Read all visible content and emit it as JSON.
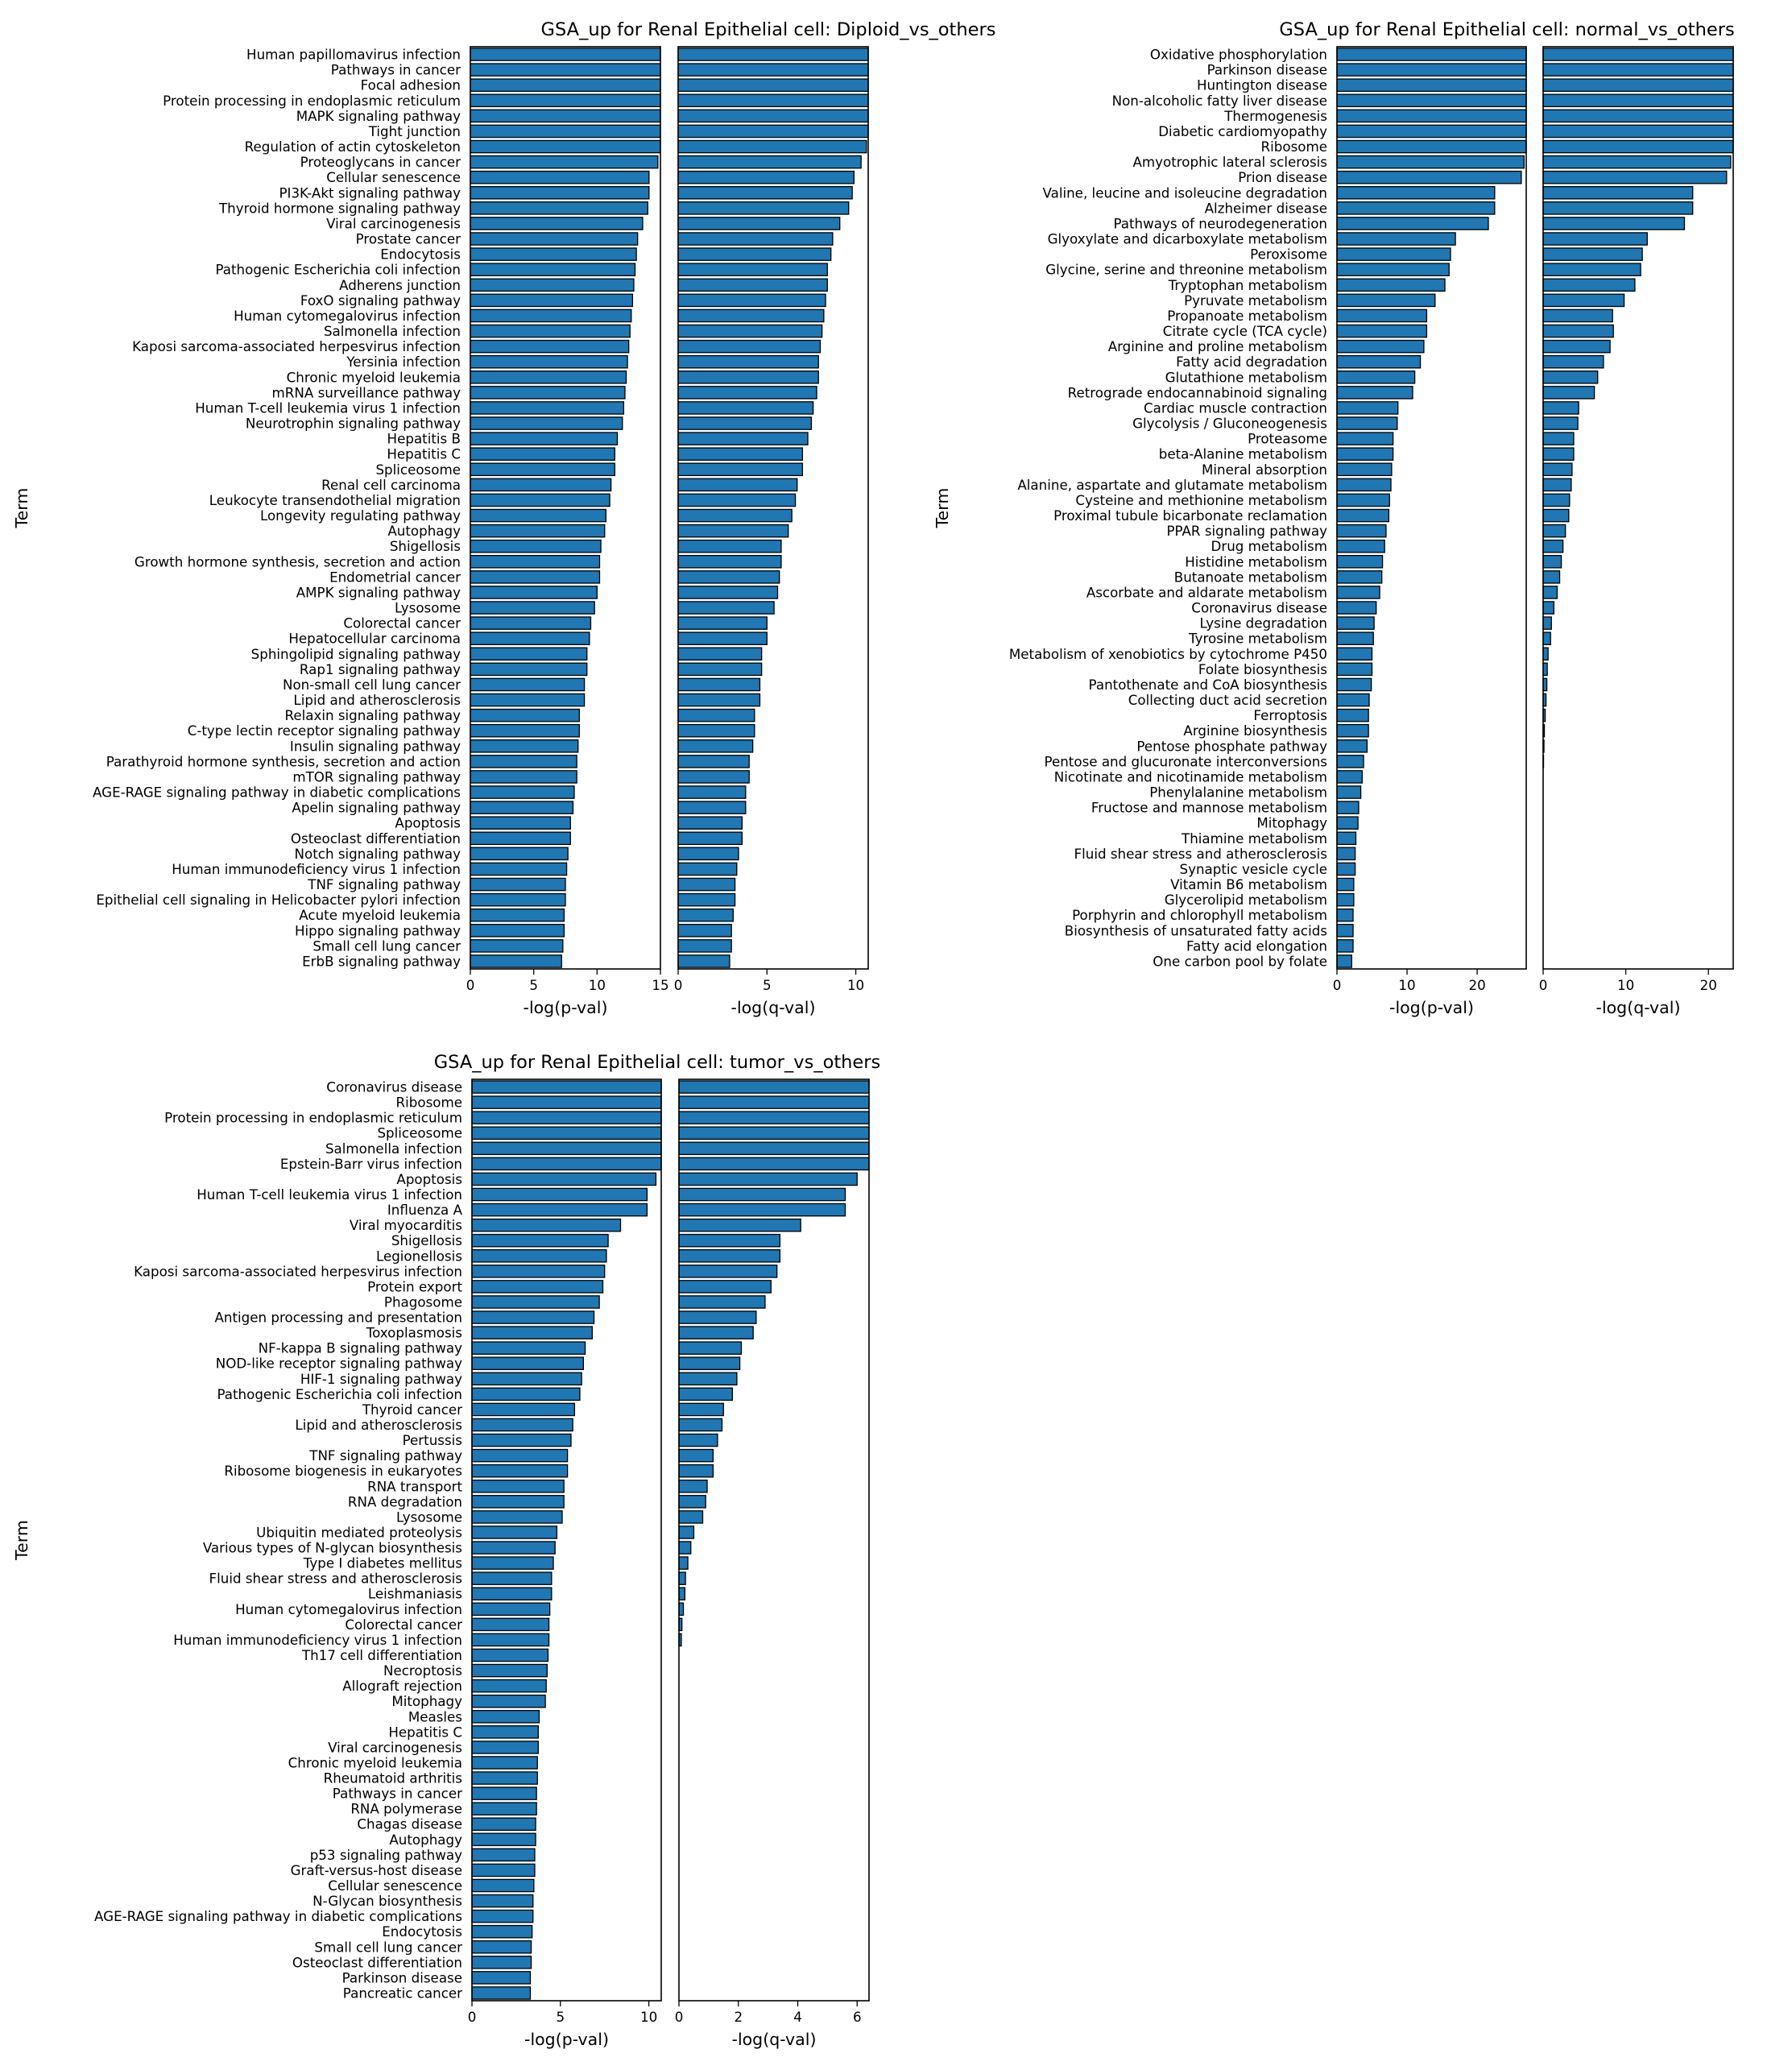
{
  "chart_data": [
    {
      "type": "bar",
      "title": "GSA_up for Renal Epithelial cell: Diploid_vs_others",
      "ylabel": "Term",
      "categories": [
        "Human papillomavirus infection",
        "Pathways in cancer",
        "Focal adhesion",
        "Protein processing in endoplasmic reticulum",
        "MAPK signaling pathway",
        "Tight junction",
        "Regulation of actin cytoskeleton",
        "Proteoglycans in cancer",
        "Cellular senescence",
        "PI3K-Akt signaling pathway",
        "Thyroid hormone signaling pathway",
        "Viral carcinogenesis",
        "Prostate cancer",
        "Endocytosis",
        "Pathogenic Escherichia coli infection",
        "Adherens junction",
        "FoxO signaling pathway",
        "Human cytomegalovirus infection",
        "Salmonella infection",
        "Kaposi sarcoma-associated herpesvirus infection",
        "Yersinia infection",
        "Chronic myeloid leukemia",
        "mRNA surveillance pathway",
        "Human T-cell leukemia virus 1 infection",
        "Neurotrophin signaling pathway",
        "Hepatitis B",
        "Hepatitis C",
        "Spliceosome",
        "Renal cell carcinoma",
        "Leukocyte transendothelial migration",
        "Longevity regulating pathway",
        "Autophagy",
        "Shigellosis",
        "Growth hormone synthesis, secretion and action",
        "Endometrial cancer",
        "AMPK signaling pathway",
        "Lysosome",
        "Colorectal cancer",
        "Hepatocellular carcinoma",
        "Sphingolipid signaling pathway",
        "Rap1 signaling pathway",
        "Non-small cell lung cancer",
        "Lipid and atherosclerosis",
        "Relaxin signaling pathway",
        "C-type lectin receptor signaling pathway",
        "Insulin signaling pathway",
        "Parathyroid hormone synthesis, secretion and action",
        "mTOR signaling pathway",
        "AGE-RAGE signaling pathway in diabetic complications",
        "Apelin signaling pathway",
        "Apoptosis",
        "Osteoclast differentiation",
        "Notch signaling pathway",
        "Human immunodeficiency virus 1 infection",
        "TNF signaling pathway",
        "Epithelial cell signaling in Helicobacter pylori infection",
        "Acute myeloid leukemia",
        "Hippo signaling pathway",
        "Small cell lung cancer",
        "ErbB signaling pathway"
      ],
      "panels": [
        {
          "xlabel": "-log(p-val)",
          "xlim": [
            0,
            15
          ],
          "xticks": [
            0,
            5,
            10,
            15
          ],
          "values": [
            15,
            15,
            15,
            15,
            15,
            15,
            15,
            14.8,
            14.1,
            14.1,
            14.0,
            13.6,
            13.2,
            13.1,
            13.0,
            12.9,
            12.8,
            12.7,
            12.6,
            12.5,
            12.4,
            12.3,
            12.2,
            12.1,
            12.0,
            11.6,
            11.4,
            11.4,
            11.1,
            11.0,
            10.7,
            10.6,
            10.3,
            10.2,
            10.2,
            10.0,
            9.8,
            9.5,
            9.4,
            9.2,
            9.2,
            9.0,
            9.0,
            8.6,
            8.6,
            8.5,
            8.4,
            8.4,
            8.2,
            8.1,
            7.9,
            7.9,
            7.7,
            7.6,
            7.5,
            7.5,
            7.4,
            7.4,
            7.3,
            7.2
          ]
        },
        {
          "xlabel": "-log(q-val)",
          "xlim": [
            0,
            10.7
          ],
          "xticks": [
            0,
            5,
            10
          ],
          "values": [
            10.7,
            10.7,
            10.7,
            10.7,
            10.7,
            10.7,
            10.6,
            10.3,
            9.9,
            9.8,
            9.6,
            9.1,
            8.7,
            8.6,
            8.4,
            8.4,
            8.3,
            8.2,
            8.1,
            8.0,
            7.9,
            7.9,
            7.8,
            7.6,
            7.5,
            7.3,
            7.0,
            7.0,
            6.7,
            6.6,
            6.4,
            6.2,
            5.8,
            5.8,
            5.7,
            5.6,
            5.4,
            5.0,
            5.0,
            4.7,
            4.7,
            4.6,
            4.6,
            4.3,
            4.3,
            4.2,
            4.0,
            4.0,
            3.8,
            3.8,
            3.6,
            3.6,
            3.4,
            3.3,
            3.2,
            3.2,
            3.1,
            3.0,
            3.0,
            2.9
          ]
        }
      ]
    },
    {
      "type": "bar",
      "title": "GSA_up for Renal Epithelial cell: normal_vs_others",
      "ylabel": "Term",
      "categories": [
        "Oxidative phosphorylation",
        "Parkinson disease",
        "Huntington disease",
        "Non-alcoholic fatty liver disease",
        "Thermogenesis",
        "Diabetic cardiomyopathy",
        "Ribosome",
        "Amyotrophic lateral sclerosis",
        "Prion disease",
        "Valine, leucine and isoleucine degradation",
        "Alzheimer disease",
        "Pathways of neurodegeneration",
        "Glyoxylate and dicarboxylate metabolism",
        "Peroxisome",
        "Glycine, serine and threonine metabolism",
        "Tryptophan metabolism",
        "Pyruvate metabolism",
        "Propanoate metabolism",
        "Citrate cycle (TCA cycle)",
        "Arginine and proline metabolism",
        "Fatty acid degradation",
        "Glutathione metabolism",
        "Retrograde endocannabinoid signaling",
        "Cardiac muscle contraction",
        "Glycolysis / Gluconeogenesis",
        "Proteasome",
        "beta-Alanine metabolism",
        "Mineral absorption",
        "Alanine, aspartate and glutamate metabolism",
        "Cysteine and methionine metabolism",
        "Proximal tubule bicarbonate reclamation",
        "PPAR signaling pathway",
        "Drug metabolism",
        "Histidine metabolism",
        "Butanoate metabolism",
        "Ascorbate and aldarate metabolism",
        "Coronavirus disease",
        "Lysine degradation",
        "Tyrosine metabolism",
        "Metabolism of xenobiotics by cytochrome P450",
        "Folate biosynthesis",
        "Pantothenate and CoA biosynthesis",
        "Collecting duct acid secretion",
        "Ferroptosis",
        "Arginine biosynthesis",
        "Pentose phosphate pathway",
        "Pentose and glucuronate interconversions",
        "Nicotinate and nicotinamide metabolism",
        "Phenylalanine metabolism",
        "Fructose and mannose metabolism",
        "Mitophagy",
        "Thiamine metabolism",
        "Fluid shear stress and atherosclerosis",
        "Synaptic vesicle cycle",
        "Vitamin B6 metabolism",
        "Glycerolipid metabolism",
        "Porphyrin and chlorophyll metabolism",
        "Biosynthesis of unsaturated fatty acids",
        "Fatty acid elongation",
        "One carbon pool by folate"
      ],
      "panels": [
        {
          "xlabel": "-log(p-val)",
          "xlim": [
            0,
            27
          ],
          "xticks": [
            0,
            10,
            20
          ],
          "values": [
            27,
            27,
            27,
            27,
            27,
            27,
            27,
            26.7,
            26.3,
            22.5,
            22.5,
            21.6,
            16.9,
            16.2,
            16.0,
            15.4,
            14.0,
            12.8,
            12.8,
            12.4,
            11.9,
            11.1,
            10.8,
            8.7,
            8.6,
            8.0,
            8.0,
            7.8,
            7.7,
            7.5,
            7.4,
            7.0,
            6.8,
            6.5,
            6.4,
            6.1,
            5.6,
            5.3,
            5.2,
            5.0,
            5.0,
            4.9,
            4.6,
            4.5,
            4.5,
            4.3,
            3.8,
            3.6,
            3.4,
            3.1,
            3.0,
            2.7,
            2.6,
            2.6,
            2.4,
            2.4,
            2.3,
            2.3,
            2.3,
            2.1
          ]
        },
        {
          "xlabel": "-log(q-val)",
          "xlim": [
            0,
            23
          ],
          "xticks": [
            0,
            10,
            20
          ],
          "values": [
            23,
            23,
            23,
            23,
            23,
            23,
            23,
            22.7,
            22.2,
            18.1,
            18.1,
            17.1,
            12.6,
            12.0,
            11.8,
            11.1,
            9.8,
            8.4,
            8.5,
            8.1,
            7.3,
            6.6,
            6.2,
            4.3,
            4.2,
            3.7,
            3.7,
            3.5,
            3.4,
            3.2,
            3.1,
            2.7,
            2.4,
            2.2,
            2.0,
            1.7,
            1.3,
            1.0,
            0.9,
            0.6,
            0.5,
            0.45,
            0.35,
            0.25,
            0.15,
            0.1,
            0.05,
            0,
            0,
            0,
            0,
            0,
            0,
            0,
            0,
            0,
            0,
            0,
            0,
            0
          ]
        }
      ]
    },
    {
      "type": "bar",
      "title": "GSA_up for Renal Epithelial cell: tumor_vs_others",
      "ylabel": "Term",
      "categories": [
        "Coronavirus disease",
        "Ribosome",
        "Protein processing in endoplasmic reticulum",
        "Spliceosome",
        "Salmonella infection",
        "Epstein-Barr virus infection",
        "Apoptosis",
        "Human T-cell leukemia virus 1 infection",
        "Influenza A",
        "Viral myocarditis",
        "Shigellosis",
        "Legionellosis",
        "Kaposi sarcoma-associated herpesvirus infection",
        "Protein export",
        "Phagosome",
        "Antigen processing and presentation",
        "Toxoplasmosis",
        "NF-kappa B signaling pathway",
        "NOD-like receptor signaling pathway",
        "HIF-1 signaling pathway",
        "Pathogenic Escherichia coli infection",
        "Thyroid cancer",
        "Lipid and atherosclerosis",
        "Pertussis",
        "TNF signaling pathway",
        "Ribosome biogenesis in eukaryotes",
        "RNA transport",
        "RNA degradation",
        "Lysosome",
        "Ubiquitin mediated proteolysis",
        "Various types of N-glycan biosynthesis",
        "Type I diabetes mellitus",
        "Fluid shear stress and atherosclerosis",
        "Leishmaniasis",
        "Human cytomegalovirus infection",
        "Colorectal cancer",
        "Human immunodeficiency virus 1 infection",
        "Th17 cell differentiation",
        "Necroptosis",
        "Allograft rejection",
        "Mitophagy",
        "Measles",
        "Hepatitis C",
        "Viral carcinogenesis",
        "Chronic myeloid leukemia",
        "Rheumatoid arthritis",
        "Pathways in cancer",
        "RNA polymerase",
        "Chagas disease",
        "Autophagy",
        "p53 signaling pathway",
        "Graft-versus-host disease",
        "Cellular senescence",
        "N-Glycan biosynthesis",
        "AGE-RAGE signaling pathway in diabetic complications",
        "Endocytosis",
        "Small cell lung cancer",
        "Osteoclast differentiation",
        "Parkinson disease",
        "Pancreatic cancer"
      ],
      "panels": [
        {
          "xlabel": "-log(p-val)",
          "xlim": [
            0,
            10.7
          ],
          "xticks": [
            0,
            5,
            10
          ],
          "values": [
            10.7,
            10.7,
            10.7,
            10.7,
            10.7,
            10.7,
            10.4,
            9.9,
            9.9,
            8.4,
            7.7,
            7.6,
            7.5,
            7.4,
            7.2,
            6.9,
            6.8,
            6.4,
            6.3,
            6.2,
            6.1,
            5.8,
            5.7,
            5.6,
            5.4,
            5.4,
            5.2,
            5.2,
            5.1,
            4.8,
            4.7,
            4.6,
            4.5,
            4.5,
            4.4,
            4.35,
            4.35,
            4.3,
            4.25,
            4.2,
            4.15,
            3.8,
            3.75,
            3.75,
            3.7,
            3.7,
            3.65,
            3.65,
            3.6,
            3.6,
            3.55,
            3.55,
            3.5,
            3.45,
            3.45,
            3.4,
            3.35,
            3.35,
            3.3,
            3.3
          ]
        },
        {
          "xlabel": "-log(q-val)",
          "xlim": [
            0,
            6.4
          ],
          "xticks": [
            0,
            2,
            4,
            6
          ],
          "values": [
            6.4,
            6.4,
            6.4,
            6.4,
            6.4,
            6.4,
            6.0,
            5.6,
            5.6,
            4.1,
            3.4,
            3.4,
            3.3,
            3.1,
            2.9,
            2.6,
            2.5,
            2.1,
            2.05,
            1.95,
            1.8,
            1.5,
            1.45,
            1.3,
            1.15,
            1.15,
            0.95,
            0.9,
            0.8,
            0.5,
            0.4,
            0.3,
            0.22,
            0.2,
            0.15,
            0.1,
            0.08,
            0,
            0,
            0,
            0,
            0,
            0,
            0,
            0,
            0,
            0,
            0,
            0,
            0,
            0,
            0,
            0,
            0,
            0,
            0,
            0,
            0,
            0,
            0
          ]
        }
      ]
    }
  ]
}
